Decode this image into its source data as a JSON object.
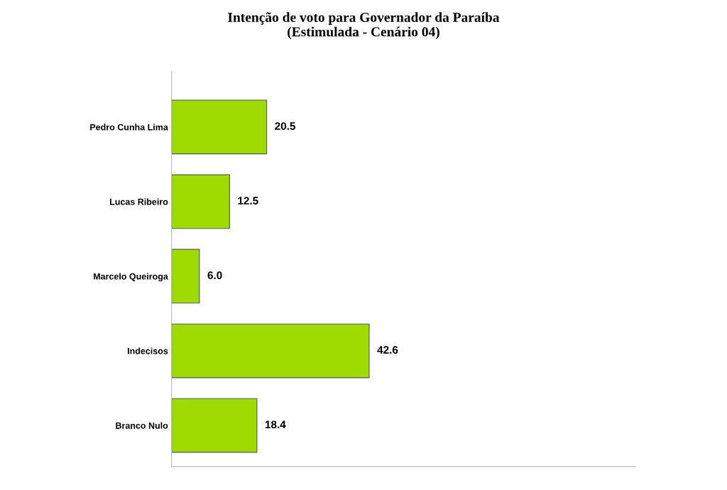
{
  "chart_data": {
    "type": "bar",
    "orientation": "horizontal",
    "title": "Intenção de voto para Governador da Paraíba\n(Estimulada - Cenário 04)",
    "categories": [
      "Pedro Cunha Lima",
      "Lucas Ribeiro",
      "Marcelo Queiroga",
      "Indecisos",
      "Branco Nulo"
    ],
    "values": [
      20.5,
      12.5,
      6.0,
      42.6,
      18.4
    ],
    "value_labels": [
      "20.5",
      "12.5",
      "6.0",
      "42.6",
      "18.4"
    ],
    "color": "#9edc00",
    "xlim": [
      0,
      100
    ],
    "tick_labels": "y",
    "grid": false,
    "legend": false
  }
}
